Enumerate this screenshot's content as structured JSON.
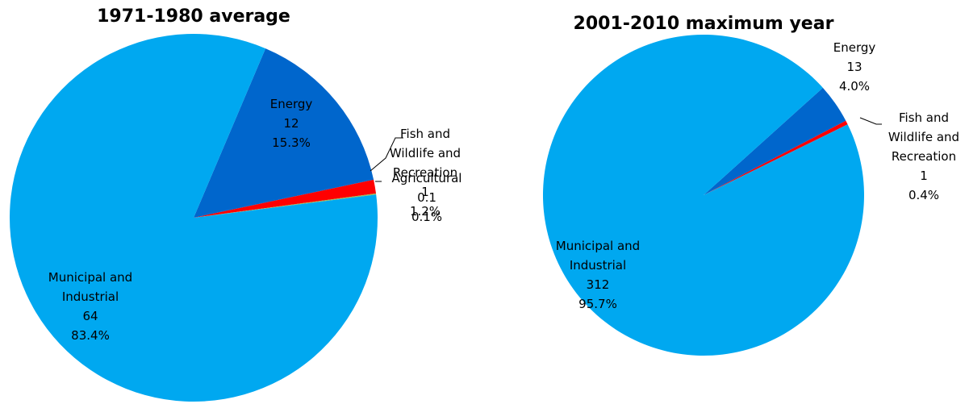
{
  "chart_data": [
    {
      "type": "pie",
      "title": "1971-1980 average",
      "slices": [
        {
          "label": [
            "Energy"
          ],
          "value": "12",
          "percent": "15.3%",
          "color": "#0066cc"
        },
        {
          "label": [
            "Fish and",
            "Wildlife and",
            "Recreation"
          ],
          "value": "1",
          "percent": "1.2%",
          "color": "#ff0000"
        },
        {
          "label": [
            "Agricultural"
          ],
          "value": "0.1",
          "percent": "0.1%",
          "color": "#9bbb59"
        },
        {
          "label": [
            "Municipal and",
            "Industrial"
          ],
          "value": "64",
          "percent": "83.4%",
          "color": "#00a8f0"
        }
      ]
    },
    {
      "type": "pie",
      "title": "2001-2010 maximum year",
      "slices": [
        {
          "label": [
            "Energy"
          ],
          "value": "13",
          "percent": "4.0%",
          "color": "#0066cc"
        },
        {
          "label": [
            "Fish and",
            "Wildlife and",
            "Recreation"
          ],
          "value": "1",
          "percent": "0.4%",
          "color": "#ff0000"
        },
        {
          "label": [
            "Municipal and",
            "Industrial"
          ],
          "value": "312",
          "percent": "95.7%",
          "color": "#00a8f0"
        }
      ]
    }
  ]
}
